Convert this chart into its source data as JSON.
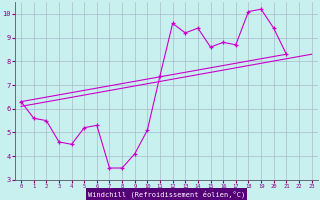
{
  "background_color": "#c8f0ee",
  "xlabel_bg": "#6600aa",
  "line_color": "#cc00cc",
  "grid_color": "#aabbcc",
  "xlabel": "Windchill (Refroidissement éolien,°C)",
  "xlim": [
    -0.5,
    23.5
  ],
  "ylim": [
    3.0,
    10.5
  ],
  "yticks": [
    3,
    4,
    5,
    6,
    7,
    8,
    9,
    10
  ],
  "xticks": [
    0,
    1,
    2,
    3,
    4,
    5,
    6,
    7,
    8,
    9,
    10,
    11,
    12,
    13,
    14,
    15,
    16,
    17,
    18,
    19,
    20,
    21,
    22,
    23
  ],
  "x_data": [
    0,
    1,
    2,
    3,
    4,
    5,
    6,
    7,
    8,
    9,
    10,
    11,
    12,
    13,
    14,
    15,
    16,
    17,
    18,
    19,
    20,
    21
  ],
  "y_main": [
    6.3,
    5.6,
    5.5,
    4.6,
    4.5,
    5.2,
    5.3,
    3.5,
    3.5,
    4.1,
    5.1,
    7.4,
    9.6,
    9.2,
    9.4,
    8.6,
    8.8,
    8.7,
    10.1,
    10.2,
    9.4,
    8.3
  ],
  "trend1_x": [
    0,
    23
  ],
  "trend1_y": [
    6.1,
    8.3
  ],
  "trend2_x": [
    0,
    21
  ],
  "trend2_y": [
    6.3,
    8.3
  ]
}
